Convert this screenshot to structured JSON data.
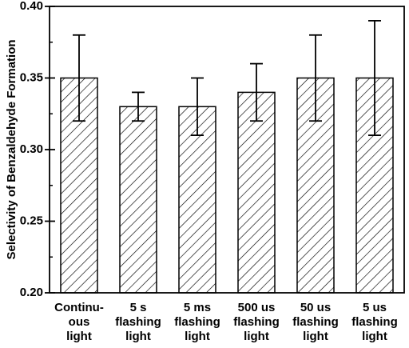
{
  "chart_data": {
    "type": "bar",
    "title": "",
    "xlabel": "",
    "ylabel": "Selectivity of  Benzaldehyde Formation",
    "ylim": [
      0.2,
      0.4
    ],
    "yticks": [
      "0.20",
      "0.25",
      "0.30",
      "0.35",
      "0.40"
    ],
    "categories": [
      [
        "Continu-",
        "ous",
        "light"
      ],
      [
        "5 s",
        "flashing",
        "light"
      ],
      [
        "5 ms",
        "flashing",
        "light"
      ],
      [
        "500 us",
        "flashing",
        "light"
      ],
      [
        "50 us",
        "flashing",
        "light"
      ],
      [
        "5 us",
        "flashing",
        "light"
      ]
    ],
    "values": [
      0.35,
      0.33,
      0.33,
      0.34,
      0.35,
      0.35
    ],
    "error_high": [
      0.38,
      0.34,
      0.35,
      0.36,
      0.38,
      0.39
    ],
    "error_low": [
      0.32,
      0.32,
      0.31,
      0.32,
      0.32,
      0.31
    ],
    "fill_pattern": "diagonal-hatch",
    "bar_color": "#000000",
    "grid": false
  }
}
